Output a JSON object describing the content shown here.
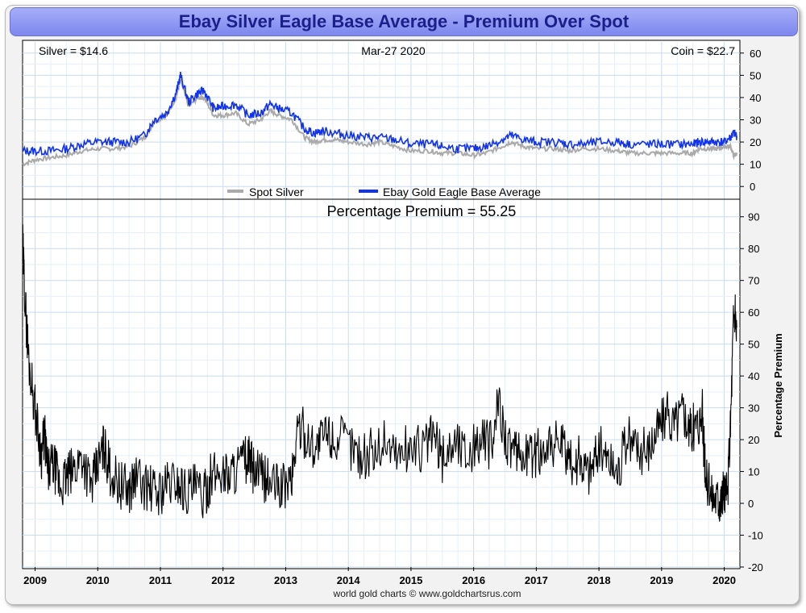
{
  "title": "Ebay Silver Eagle Base Average - Premium Over Spot",
  "credit": "world gold charts © www.goldchartsrus.com",
  "colors": {
    "spot": "#aaaaaa",
    "ebay": "#1133ee",
    "premium": "#000000",
    "title_bg": "#8f97f3",
    "title_text": "#1a1f8a"
  },
  "chart_data": [
    {
      "type": "line",
      "info": {
        "silver": "Silver = $14.6",
        "date": "Mar-27  2020",
        "coin": "Coin = $22.7"
      },
      "legend": [
        "Spot Silver",
        "Ebay Gold Eagle Base Average"
      ],
      "legend_position": "bottom-center",
      "x_tick_labels": [
        "2009",
        "2010",
        "2011",
        "2012",
        "2013",
        "2014",
        "2015",
        "2016",
        "2017",
        "2018",
        "2019",
        "2020"
      ],
      "y_tick_labels": [
        "0",
        "10",
        "20",
        "30",
        "40",
        "50",
        "60"
      ],
      "xlim": [
        2008.8,
        2020.25
      ],
      "ylim": [
        -5,
        65
      ],
      "grid": true,
      "series": [
        {
          "name": "Spot Silver",
          "x": [
            2008.8,
            2009.0,
            2009.25,
            2009.5,
            2009.75,
            2010.0,
            2010.25,
            2010.5,
            2010.75,
            2010.9,
            2011.1,
            2011.25,
            2011.32,
            2011.45,
            2011.6,
            2011.7,
            2011.85,
            2012.0,
            2012.2,
            2012.4,
            2012.6,
            2012.75,
            2012.9,
            2013.1,
            2013.3,
            2013.45,
            2013.6,
            2013.8,
            2014.0,
            2014.3,
            2014.5,
            2014.75,
            2015.0,
            2015.3,
            2015.5,
            2015.75,
            2016.0,
            2016.2,
            2016.45,
            2016.6,
            2016.8,
            2017.0,
            2017.3,
            2017.5,
            2017.75,
            2018.0,
            2018.3,
            2018.5,
            2018.8,
            2019.0,
            2019.3,
            2019.5,
            2019.6,
            2019.75,
            2019.9,
            2020.0,
            2020.1,
            2020.15,
            2020.2
          ],
          "y": [
            10,
            12,
            13,
            14,
            16,
            17,
            17,
            18,
            22,
            29,
            32,
            40,
            48,
            36,
            40,
            40,
            32,
            32,
            33,
            28,
            30,
            34,
            32,
            30,
            22,
            20,
            21,
            21,
            20,
            19,
            20,
            18,
            16,
            16,
            15,
            15,
            14,
            15,
            18,
            20,
            18,
            17,
            17,
            16,
            17,
            17,
            16,
            15,
            15,
            15,
            15,
            15,
            17,
            17,
            17,
            18,
            18,
            14,
            14.6
          ]
        },
        {
          "name": "Ebay Gold Eagle Base Average",
          "x": [
            2008.8,
            2009.0,
            2009.25,
            2009.5,
            2009.75,
            2010.0,
            2010.25,
            2010.5,
            2010.75,
            2010.9,
            2011.1,
            2011.25,
            2011.32,
            2011.45,
            2011.6,
            2011.7,
            2011.85,
            2012.0,
            2012.2,
            2012.4,
            2012.6,
            2012.75,
            2012.9,
            2013.1,
            2013.3,
            2013.45,
            2013.6,
            2013.8,
            2014.0,
            2014.3,
            2014.5,
            2014.75,
            2015.0,
            2015.3,
            2015.5,
            2015.75,
            2016.0,
            2016.2,
            2016.45,
            2016.6,
            2016.8,
            2017.0,
            2017.3,
            2017.5,
            2017.75,
            2018.0,
            2018.3,
            2018.5,
            2018.8,
            2019.0,
            2019.3,
            2019.5,
            2019.6,
            2019.75,
            2019.9,
            2020.0,
            2020.1,
            2020.15,
            2020.2
          ],
          "y": [
            16,
            16,
            16,
            17,
            19,
            20,
            20,
            20,
            23,
            30,
            33,
            42,
            50,
            38,
            42,
            43,
            35,
            36,
            37,
            32,
            33,
            37,
            35,
            33,
            26,
            24,
            25,
            24,
            23,
            22,
            22,
            21,
            19,
            19,
            18,
            17,
            17,
            18,
            21,
            23,
            21,
            20,
            20,
            19,
            19,
            20,
            20,
            19,
            19,
            19,
            19,
            19,
            20,
            20,
            20,
            20,
            22,
            24,
            22.7
          ]
        }
      ]
    },
    {
      "type": "line",
      "title": "Percentage Premium = 55.25",
      "ylabel": "Percentage Premium",
      "x_tick_labels": [
        "2009",
        "2010",
        "2011",
        "2012",
        "2013",
        "2014",
        "2015",
        "2016",
        "2017",
        "2018",
        "2019",
        "2020"
      ],
      "y_tick_labels": [
        "-20",
        "-10",
        "0",
        "10",
        "20",
        "30",
        "40",
        "50",
        "60",
        "70",
        "80",
        "90"
      ],
      "xlim": [
        2008.8,
        2020.25
      ],
      "ylim": [
        -20,
        95
      ],
      "grid": true,
      "series": [
        {
          "name": "Percentage Premium",
          "x": [
            2008.8,
            2008.85,
            2008.9,
            2009.0,
            2009.1,
            2009.15,
            2009.2,
            2009.3,
            2009.4,
            2009.5,
            2009.6,
            2009.75,
            2009.9,
            2010.0,
            2010.1,
            2010.2,
            2010.35,
            2010.5,
            2010.6,
            2010.8,
            2010.95,
            2011.1,
            2011.25,
            2011.4,
            2011.55,
            2011.7,
            2011.8,
            2011.95,
            2012.1,
            2012.25,
            2012.4,
            2012.5,
            2012.65,
            2012.8,
            2012.95,
            2013.1,
            2013.2,
            2013.35,
            2013.5,
            2013.65,
            2013.8,
            2014.0,
            2014.2,
            2014.4,
            2014.6,
            2014.8,
            2015.0,
            2015.2,
            2015.35,
            2015.5,
            2015.7,
            2015.9,
            2016.1,
            2016.3,
            2016.4,
            2016.55,
            2016.7,
            2016.85,
            2017.0,
            2017.2,
            2017.4,
            2017.55,
            2017.7,
            2017.85,
            2018.0,
            2018.15,
            2018.3,
            2018.45,
            2018.6,
            2018.75,
            2018.9,
            2019.05,
            2019.2,
            2019.35,
            2019.45,
            2019.55,
            2019.65,
            2019.7,
            2019.8,
            2019.9,
            2019.95,
            2020.0,
            2020.05,
            2020.1,
            2020.15,
            2020.2
          ],
          "y": [
            82,
            60,
            45,
            30,
            15,
            22,
            10,
            12,
            5,
            8,
            10,
            15,
            5,
            12,
            18,
            10,
            6,
            4,
            8,
            5,
            3,
            6,
            7,
            4,
            5,
            2,
            8,
            10,
            9,
            12,
            14,
            10,
            8,
            6,
            5,
            8,
            25,
            20,
            18,
            22,
            20,
            19,
            15,
            16,
            20,
            15,
            18,
            17,
            22,
            14,
            20,
            16,
            20,
            18,
            32,
            18,
            14,
            16,
            15,
            20,
            18,
            12,
            14,
            10,
            18,
            14,
            10,
            20,
            18,
            16,
            22,
            28,
            25,
            30,
            22,
            25,
            28,
            8,
            3,
            2,
            1,
            4,
            2,
            25,
            60,
            55.25
          ]
        }
      ]
    }
  ]
}
